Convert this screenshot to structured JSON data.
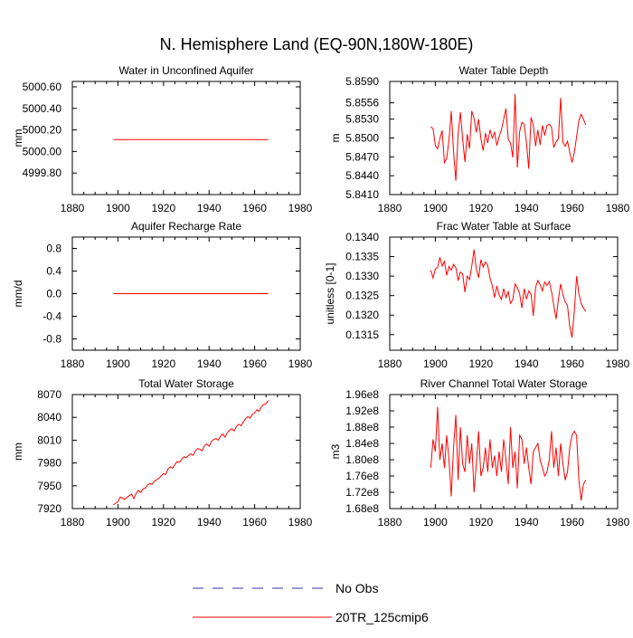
{
  "figure_title": "N. Hemisphere Land (EQ-90N,180W-180E)",
  "colors": {
    "model": "#ff0000",
    "obs": "#3333aa",
    "axis": "#000000"
  },
  "legend": {
    "obs_label": "No Obs",
    "model_label": "20TR_125cmip6"
  },
  "chart_data": [
    {
      "type": "line",
      "title": "Water in Unconfined Aquifer",
      "ylabel": "mm",
      "xlim": [
        1880,
        1980
      ],
      "xticks": [
        1880,
        1900,
        1920,
        1940,
        1960,
        1980
      ],
      "ylim": [
        4999.6,
        5000.65
      ],
      "yticks": [
        4999.8,
        5000.0,
        5000.2,
        5000.4,
        5000.6
      ],
      "ytick_labels": [
        "4999.80",
        "5000.00",
        "5000.20",
        "5000.40",
        "5000.60"
      ],
      "series": [
        {
          "name": "20TR_125cmip6",
          "x_start": 1898,
          "x_end": 1966,
          "values": [
            5000.11,
            5000.11,
            5000.11,
            5000.11,
            5000.11,
            5000.11,
            5000.11,
            5000.11,
            5000.11,
            5000.11,
            5000.11,
            5000.11,
            5000.11,
            5000.11,
            5000.11,
            5000.11,
            5000.11,
            5000.11,
            5000.11,
            5000.11,
            5000.11,
            5000.11,
            5000.11,
            5000.11,
            5000.11,
            5000.11,
            5000.11,
            5000.11,
            5000.11,
            5000.11,
            5000.11,
            5000.11,
            5000.11,
            5000.11,
            5000.11,
            5000.11,
            5000.11,
            5000.11,
            5000.11,
            5000.11,
            5000.11,
            5000.11,
            5000.11,
            5000.11,
            5000.11,
            5000.11,
            5000.11,
            5000.11,
            5000.11,
            5000.11,
            5000.11,
            5000.11,
            5000.11,
            5000.11,
            5000.11,
            5000.11,
            5000.11,
            5000.11,
            5000.11,
            5000.11,
            5000.11,
            5000.11,
            5000.11,
            5000.11,
            5000.11,
            5000.11,
            5000.11,
            5000.11,
            5000.11
          ]
        }
      ]
    },
    {
      "type": "line",
      "title": "Water Table Depth",
      "ylabel": "m",
      "xlim": [
        1880,
        1980
      ],
      "xticks": [
        1880,
        1900,
        1920,
        1940,
        1960,
        1980
      ],
      "ylim": [
        5.841,
        5.859
      ],
      "yticks": [
        5.841,
        5.844,
        5.847,
        5.85,
        5.853,
        5.8556,
        5.859
      ],
      "ytick_labels": [
        "5.8410",
        "5.8440",
        "5.8470",
        "5.8500",
        "5.8530",
        "5.8556",
        "5.8590"
      ],
      "series": [
        {
          "name": "20TR_125cmip6",
          "x_start": 1898,
          "x_end": 1966,
          "values": [
            5.8518,
            5.8515,
            5.8488,
            5.8483,
            5.8499,
            5.8512,
            5.8461,
            5.8468,
            5.8497,
            5.8543,
            5.8478,
            5.8432,
            5.8506,
            5.8541,
            5.8498,
            5.8462,
            5.8506,
            5.8483,
            5.8543,
            5.8531,
            5.8509,
            5.853,
            5.8499,
            5.848,
            5.8508,
            5.8492,
            5.8513,
            5.85,
            5.8509,
            5.8488,
            5.8502,
            5.8513,
            5.853,
            5.8547,
            5.8498,
            5.8492,
            5.8469,
            5.857,
            5.8453,
            5.851,
            5.8525,
            5.8522,
            5.8492,
            5.8451,
            5.8533,
            5.852,
            5.8487,
            5.8513,
            5.8489,
            5.852,
            5.8504,
            5.852,
            5.8522,
            5.8517,
            5.8485,
            5.8494,
            5.8499,
            5.8564,
            5.8493,
            5.8487,
            5.8495,
            5.8477,
            5.8461,
            5.8477,
            5.8502,
            5.8528,
            5.8538,
            5.853,
            5.8521
          ]
        }
      ]
    },
    {
      "type": "line",
      "title": "Aquifer Recharge Rate",
      "ylabel": "mm/d",
      "xlim": [
        1880,
        1980
      ],
      "xticks": [
        1880,
        1900,
        1920,
        1940,
        1960,
        1980
      ],
      "ylim": [
        -1.0,
        1.0
      ],
      "yticks": [
        -0.8,
        -0.4,
        0.0,
        0.4,
        0.8
      ],
      "ytick_labels": [
        "-0.8",
        "-0.4",
        "0.0",
        "0.4",
        "0.8"
      ],
      "series": [
        {
          "name": "20TR_125cmip6",
          "x_start": 1898,
          "x_end": 1966,
          "values": [
            0.0,
            0.0,
            0.0,
            0.0,
            0.0,
            0.0,
            0.0,
            0.0,
            0.0,
            0.0,
            0.0,
            0.0,
            0.0,
            0.0,
            0.0,
            0.0,
            0.0,
            0.0,
            0.0,
            0.0,
            0.0,
            0.0,
            0.0,
            0.0,
            0.0,
            0.0,
            0.0,
            0.0,
            0.0,
            0.0,
            0.0,
            0.0,
            0.0,
            0.0,
            0.0,
            0.0,
            0.0,
            0.0,
            0.0,
            0.0,
            0.0,
            0.0,
            0.0,
            0.0,
            0.0,
            0.0,
            0.0,
            0.0,
            0.0,
            0.0,
            0.0,
            0.0,
            0.0,
            0.0,
            0.0,
            0.0,
            0.0,
            0.0,
            0.0,
            0.0,
            0.0,
            0.0,
            0.0,
            0.0,
            0.0,
            0.0,
            0.0,
            0.0,
            0.0
          ]
        }
      ]
    },
    {
      "type": "line",
      "title": "Frac Water Table at Surface",
      "ylabel": "unitless [0-1]",
      "xlim": [
        1880,
        1980
      ],
      "xticks": [
        1880,
        1900,
        1920,
        1940,
        1960,
        1980
      ],
      "ylim": [
        0.1311,
        0.134
      ],
      "yticks": [
        0.1315,
        0.132,
        0.1325,
        0.133,
        0.1335,
        0.134
      ],
      "ytick_labels": [
        "0.1315",
        "0.1320",
        "0.1325",
        "0.1330",
        "0.1335",
        "0.1340"
      ],
      "series": [
        {
          "name": "20TR_125cmip6",
          "x_start": 1898,
          "x_end": 1966,
          "values": [
            0.13315,
            0.13295,
            0.13318,
            0.13322,
            0.13348,
            0.13326,
            0.13338,
            0.13302,
            0.13325,
            0.13315,
            0.1333,
            0.13322,
            0.13288,
            0.1331,
            0.13306,
            0.13259,
            0.133,
            0.13291,
            0.13326,
            0.13368,
            0.13318,
            0.13296,
            0.13342,
            0.13323,
            0.13336,
            0.13327,
            0.13295,
            0.13275,
            0.13245,
            0.13275,
            0.13252,
            0.1324,
            0.13268,
            0.13245,
            0.1326,
            0.1323,
            0.1324,
            0.1328,
            0.1327,
            0.13255,
            0.13218,
            0.13268,
            0.13241,
            0.13262,
            0.13254,
            0.13198,
            0.13271,
            0.13289,
            0.13278,
            0.13262,
            0.13285,
            0.13276,
            0.13286,
            0.1326,
            0.13225,
            0.1319,
            0.1324,
            0.1328,
            0.13252,
            0.13234,
            0.13225,
            0.1317,
            0.13142,
            0.1321,
            0.133,
            0.13255,
            0.1323,
            0.13218,
            0.1321
          ]
        }
      ]
    },
    {
      "type": "line",
      "title": "Total Water Storage",
      "ylabel": "mm",
      "xlim": [
        1880,
        1980
      ],
      "xticks": [
        1880,
        1900,
        1920,
        1940,
        1960,
        1980
      ],
      "ylim": [
        7920,
        8070
      ],
      "yticks": [
        7920,
        7950,
        7980,
        8010,
        8040,
        8070
      ],
      "ytick_labels": [
        "7920",
        "7950",
        "7980",
        "8010",
        "8040",
        "8070"
      ],
      "series": [
        {
          "name": "20TR_125cmip6",
          "x_start": 1898,
          "x_end": 1966,
          "values": [
            7925,
            7927,
            7929,
            7935,
            7934,
            7932,
            7935,
            7937,
            7939,
            7933,
            7940,
            7944,
            7941,
            7946,
            7947,
            7951,
            7953,
            7952,
            7956,
            7958,
            7960,
            7963,
            7966,
            7965,
            7972,
            7975,
            7973,
            7978,
            7982,
            7981,
            7985,
            7988,
            7987,
            7990,
            7992,
            7990,
            7996,
            7999,
            7998,
            7996,
            8003,
            8005,
            8002,
            8008,
            8011,
            8012,
            8010,
            8015,
            8018,
            8014,
            8020,
            8023,
            8025,
            8022,
            8028,
            8031,
            8029,
            8034,
            8038,
            8041,
            8039,
            8044,
            8046,
            8050,
            8048,
            8054,
            8057,
            8058,
            8062
          ]
        }
      ]
    },
    {
      "type": "line",
      "title": "River Channel Total Water Storage",
      "ylabel": "m3",
      "xlim": [
        1880,
        1980
      ],
      "xticks": [
        1880,
        1900,
        1920,
        1940,
        1960,
        1980
      ],
      "ylim": [
        168000000.0,
        196000000.0
      ],
      "yticks": [
        168000000.0,
        172000000.0,
        176000000.0,
        180000000.0,
        184000000.0,
        188000000.0,
        192000000.0,
        196000000.0
      ],
      "ytick_labels": [
        "1.68e8",
        "1.72e8",
        "1.76e8",
        "1.80e8",
        "1.84e8",
        "1.88e8",
        "1.92e8",
        "1.96e8"
      ],
      "series": [
        {
          "name": "20TR_125cmip6",
          "x_start": 1898,
          "x_end": 1966,
          "values": [
            178000000.0,
            185000000.0,
            182000000.0,
            193000000.0,
            180000000.0,
            184000000.0,
            178000000.0,
            186000000.0,
            180000000.0,
            171000000.0,
            183000000.0,
            191000000.0,
            175000000.0,
            188000000.0,
            179000000.0,
            177000000.0,
            186000000.0,
            179000000.0,
            184000000.0,
            172000000.0,
            179000000.0,
            187000000.0,
            176000000.0,
            178000000.0,
            183000000.0,
            177000000.0,
            185000000.0,
            178000000.0,
            181000000.0,
            176000000.0,
            182000000.0,
            177000000.0,
            185000000.0,
            180000000.0,
            174000000.0,
            188000000.0,
            178000000.0,
            182000000.0,
            173000000.0,
            186000000.0,
            185000000.0,
            179000000.0,
            183000000.0,
            178000000.0,
            174000000.0,
            182000000.0,
            183000000.0,
            184000000.0,
            180000000.0,
            178000000.0,
            176000000.0,
            177000000.0,
            180000000.0,
            187000000.0,
            178000000.0,
            183000000.0,
            176000000.0,
            184000000.0,
            179000000.0,
            175000000.0,
            177000000.0,
            183000000.0,
            186000000.0,
            187000000.0,
            186000000.0,
            175000000.0,
            170000000.0,
            174000000.0,
            175000000.0
          ]
        }
      ]
    }
  ]
}
